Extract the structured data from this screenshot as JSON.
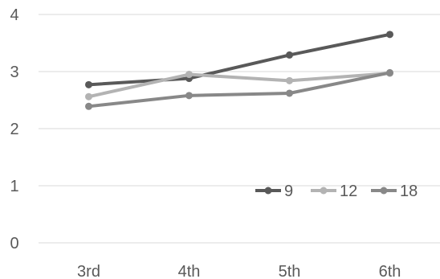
{
  "chart_data": {
    "type": "line",
    "categories": [
      "3rd",
      "4th",
      "5th",
      "6th"
    ],
    "series": [
      {
        "name": "9",
        "values": [
          2.77,
          2.88,
          3.29,
          3.65
        ],
        "color": "#595959"
      },
      {
        "name": "12",
        "values": [
          2.56,
          2.95,
          2.84,
          2.97
        ],
        "color": "#b3b3b3"
      },
      {
        "name": "18",
        "values": [
          2.39,
          2.58,
          2.62,
          2.98
        ],
        "color": "#888888"
      }
    ],
    "y_ticks": [
      "0",
      "1",
      "2",
      "3",
      "4"
    ],
    "ylim": [
      0,
      4
    ],
    "grid": true,
    "legend_position": "lower-right"
  }
}
